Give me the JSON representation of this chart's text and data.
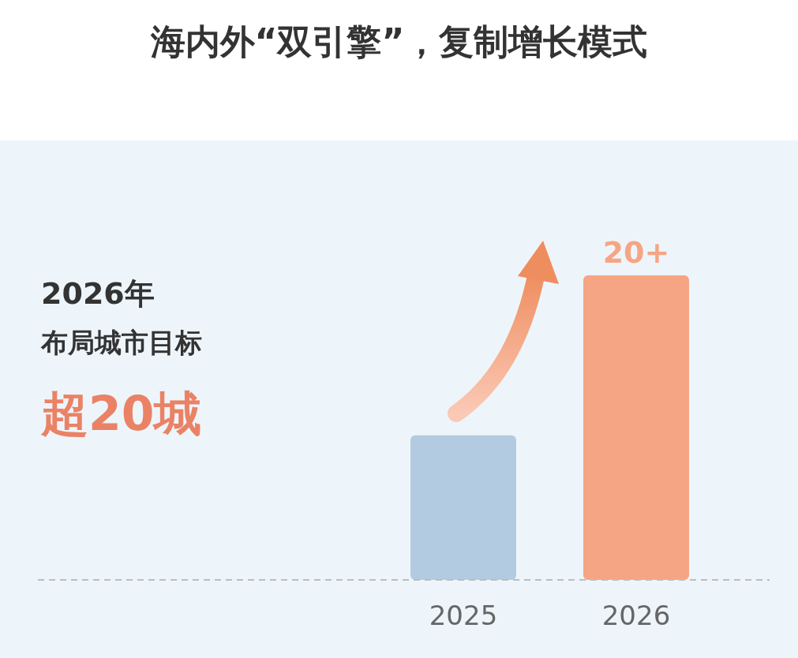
{
  "chart_data": {
    "type": "bar",
    "title": "海内外“双引擎”，复制增长模式",
    "categories": [
      "2025",
      "2026"
    ],
    "values": [
      9.5,
      20
    ],
    "colors": [
      "#b3cbe0",
      "#f6a584"
    ],
    "value_labels": [
      null,
      "20+"
    ],
    "annotations": [
      "2026年",
      "布局城市目标",
      "超20城"
    ]
  }
}
